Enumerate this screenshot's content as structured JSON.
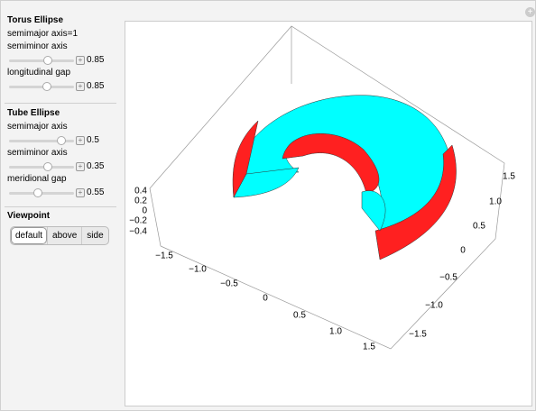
{
  "panel": {
    "sections": [
      {
        "title": "Torus Ellipse",
        "note": "semimajor axis=1",
        "sliders": [
          {
            "label": "semiminor axis",
            "value": 0.85
          },
          {
            "label": "longitudinal gap",
            "value": 0.85
          }
        ]
      },
      {
        "title": "Tube Ellipse",
        "sliders": [
          {
            "label": "semimajor axis",
            "value": 0.5
          },
          {
            "label": "semiminor axis",
            "value": 0.35
          },
          {
            "label": "meridional gap",
            "value": 0.55
          }
        ]
      },
      {
        "title": "Viewpoint",
        "buttons": [
          "default",
          "above",
          "side"
        ]
      }
    ]
  },
  "plot": {
    "x_tick_labels": [
      "−1.5",
      "−1.0",
      "−0.5",
      "0",
      "0.5",
      "1.0",
      "1.5"
    ],
    "y_tick_labels": [
      "1.5",
      "1.0",
      "0.5",
      "0",
      "−0.5",
      "−1.0",
      "−1.5"
    ],
    "z_tick_labels": [
      "0.4",
      "0.2",
      "0",
      "−0.2",
      "−0.4"
    ]
  }
}
